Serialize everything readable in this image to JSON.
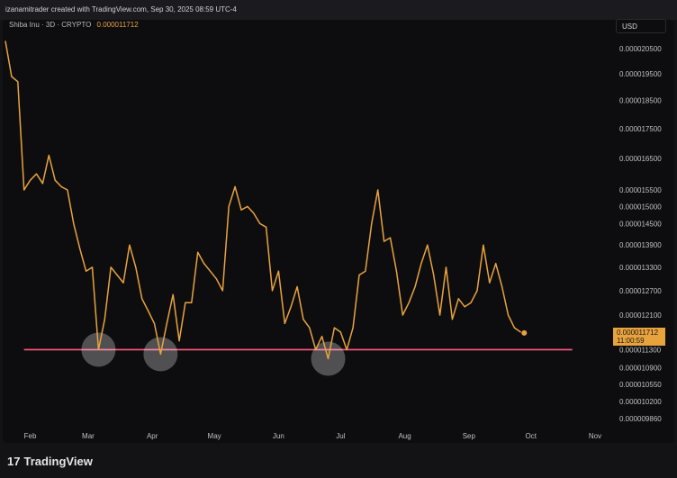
{
  "header": {
    "caption": "izanamitrader created with TradingView.com, Sep 30, 2025 08:59 UTC-4"
  },
  "symbol": {
    "name": "Shiba Inu · 3D · CRYPTO",
    "price": "0.000011712"
  },
  "currency": "USD",
  "current_price_tag": {
    "price": "0.000011712",
    "countdown": "11:00:59"
  },
  "footer": {
    "brand": "TradingView",
    "logo_mark": "17"
  },
  "colors": {
    "line": "#e8a33d",
    "support": "#ff5a82",
    "marker": "#ffffff"
  },
  "chart_data": {
    "type": "line",
    "title": "",
    "xlabel": "",
    "ylabel": "",
    "x_ticks": [
      "Feb",
      "Mar",
      "Apr",
      "May",
      "Jun",
      "Jul",
      "Aug",
      "Sep",
      "Oct",
      "Nov"
    ],
    "y_ticks": [
      "0.000020500",
      "0.000019500",
      "0.000018500",
      "0.000017500",
      "0.000016500",
      "0.000015500",
      "0.000015000",
      "0.000014500",
      "0.000013900",
      "0.000013300",
      "0.000012700",
      "0.000012100",
      "0.000011300",
      "0.000010900",
      "0.000010550",
      "0.000010200",
      "0.000009860"
    ],
    "scale": "log",
    "series": [
      {
        "values": [
          [
            "2025-01-20",
            2.08e-05
          ],
          [
            "2025-01-23",
            1.94e-05
          ],
          [
            "2025-01-26",
            1.92e-05
          ],
          [
            "2025-01-29",
            1.55e-05
          ],
          [
            "2025-02-01",
            1.58e-05
          ],
          [
            "2025-02-04",
            1.6e-05
          ],
          [
            "2025-02-07",
            1.57e-05
          ],
          [
            "2025-02-10",
            1.66e-05
          ],
          [
            "2025-02-13",
            1.58e-05
          ],
          [
            "2025-02-16",
            1.56e-05
          ],
          [
            "2025-02-19",
            1.55e-05
          ],
          [
            "2025-02-22",
            1.45e-05
          ],
          [
            "2025-02-25",
            1.38e-05
          ],
          [
            "2025-02-28",
            1.32e-05
          ],
          [
            "2025-03-03",
            1.33e-05
          ],
          [
            "2025-03-06",
            1.13e-05
          ],
          [
            "2025-03-09",
            1.2e-05
          ],
          [
            "2025-03-12",
            1.33e-05
          ],
          [
            "2025-03-15",
            1.31e-05
          ],
          [
            "2025-03-18",
            1.29e-05
          ],
          [
            "2025-03-21",
            1.39e-05
          ],
          [
            "2025-03-24",
            1.33e-05
          ],
          [
            "2025-03-27",
            1.25e-05
          ],
          [
            "2025-03-30",
            1.22e-05
          ],
          [
            "2025-04-02",
            1.19e-05
          ],
          [
            "2025-04-05",
            1.12e-05
          ],
          [
            "2025-04-08",
            1.19e-05
          ],
          [
            "2025-04-11",
            1.26e-05
          ],
          [
            "2025-04-14",
            1.15e-05
          ],
          [
            "2025-04-17",
            1.24e-05
          ],
          [
            "2025-04-20",
            1.24e-05
          ],
          [
            "2025-04-23",
            1.37e-05
          ],
          [
            "2025-04-26",
            1.34e-05
          ],
          [
            "2025-04-29",
            1.32e-05
          ],
          [
            "2025-05-02",
            1.3e-05
          ],
          [
            "2025-05-05",
            1.27e-05
          ],
          [
            "2025-05-08",
            1.5e-05
          ],
          [
            "2025-05-11",
            1.56e-05
          ],
          [
            "2025-05-14",
            1.49e-05
          ],
          [
            "2025-05-17",
            1.5e-05
          ],
          [
            "2025-05-20",
            1.48e-05
          ],
          [
            "2025-05-23",
            1.45e-05
          ],
          [
            "2025-05-26",
            1.44e-05
          ],
          [
            "2025-05-29",
            1.27e-05
          ],
          [
            "2025-06-01",
            1.32e-05
          ],
          [
            "2025-06-04",
            1.19e-05
          ],
          [
            "2025-06-07",
            1.23e-05
          ],
          [
            "2025-06-10",
            1.28e-05
          ],
          [
            "2025-06-13",
            1.2e-05
          ],
          [
            "2025-06-16",
            1.18e-05
          ],
          [
            "2025-06-19",
            1.13e-05
          ],
          [
            "2025-06-22",
            1.16e-05
          ],
          [
            "2025-06-25",
            1.11e-05
          ],
          [
            "2025-06-28",
            1.18e-05
          ],
          [
            "2025-07-01",
            1.17e-05
          ],
          [
            "2025-07-04",
            1.13e-05
          ],
          [
            "2025-07-07",
            1.18e-05
          ],
          [
            "2025-07-10",
            1.31e-05
          ],
          [
            "2025-07-13",
            1.32e-05
          ],
          [
            "2025-07-16",
            1.45e-05
          ],
          [
            "2025-07-19",
            1.55e-05
          ],
          [
            "2025-07-22",
            1.4e-05
          ],
          [
            "2025-07-25",
            1.41e-05
          ],
          [
            "2025-07-28",
            1.32e-05
          ],
          [
            "2025-07-31",
            1.21e-05
          ],
          [
            "2025-08-03",
            1.24e-05
          ],
          [
            "2025-08-06",
            1.28e-05
          ],
          [
            "2025-08-09",
            1.34e-05
          ],
          [
            "2025-08-12",
            1.39e-05
          ],
          [
            "2025-08-15",
            1.31e-05
          ],
          [
            "2025-08-18",
            1.21e-05
          ],
          [
            "2025-08-21",
            1.33e-05
          ],
          [
            "2025-08-24",
            1.2e-05
          ],
          [
            "2025-08-27",
            1.25e-05
          ],
          [
            "2025-08-30",
            1.23e-05
          ],
          [
            "2025-09-02",
            1.24e-05
          ],
          [
            "2025-09-05",
            1.27e-05
          ],
          [
            "2025-09-08",
            1.39e-05
          ],
          [
            "2025-09-11",
            1.29e-05
          ],
          [
            "2025-09-14",
            1.34e-05
          ],
          [
            "2025-09-17",
            1.28e-05
          ],
          [
            "2025-09-20",
            1.21e-05
          ],
          [
            "2025-09-23",
            1.18e-05
          ],
          [
            "2025-09-26",
            1.17e-05
          ]
        ]
      }
    ],
    "support_level": 1.13e-05,
    "support_range": [
      "2025-01-29",
      "2025-10-21"
    ],
    "highlighted_lows": [
      [
        "2025-03-06",
        1.13e-05
      ],
      [
        "2025-04-05",
        1.12e-05
      ],
      [
        "2025-06-25",
        1.11e-05
      ]
    ],
    "grid": false,
    "legend": "none"
  }
}
